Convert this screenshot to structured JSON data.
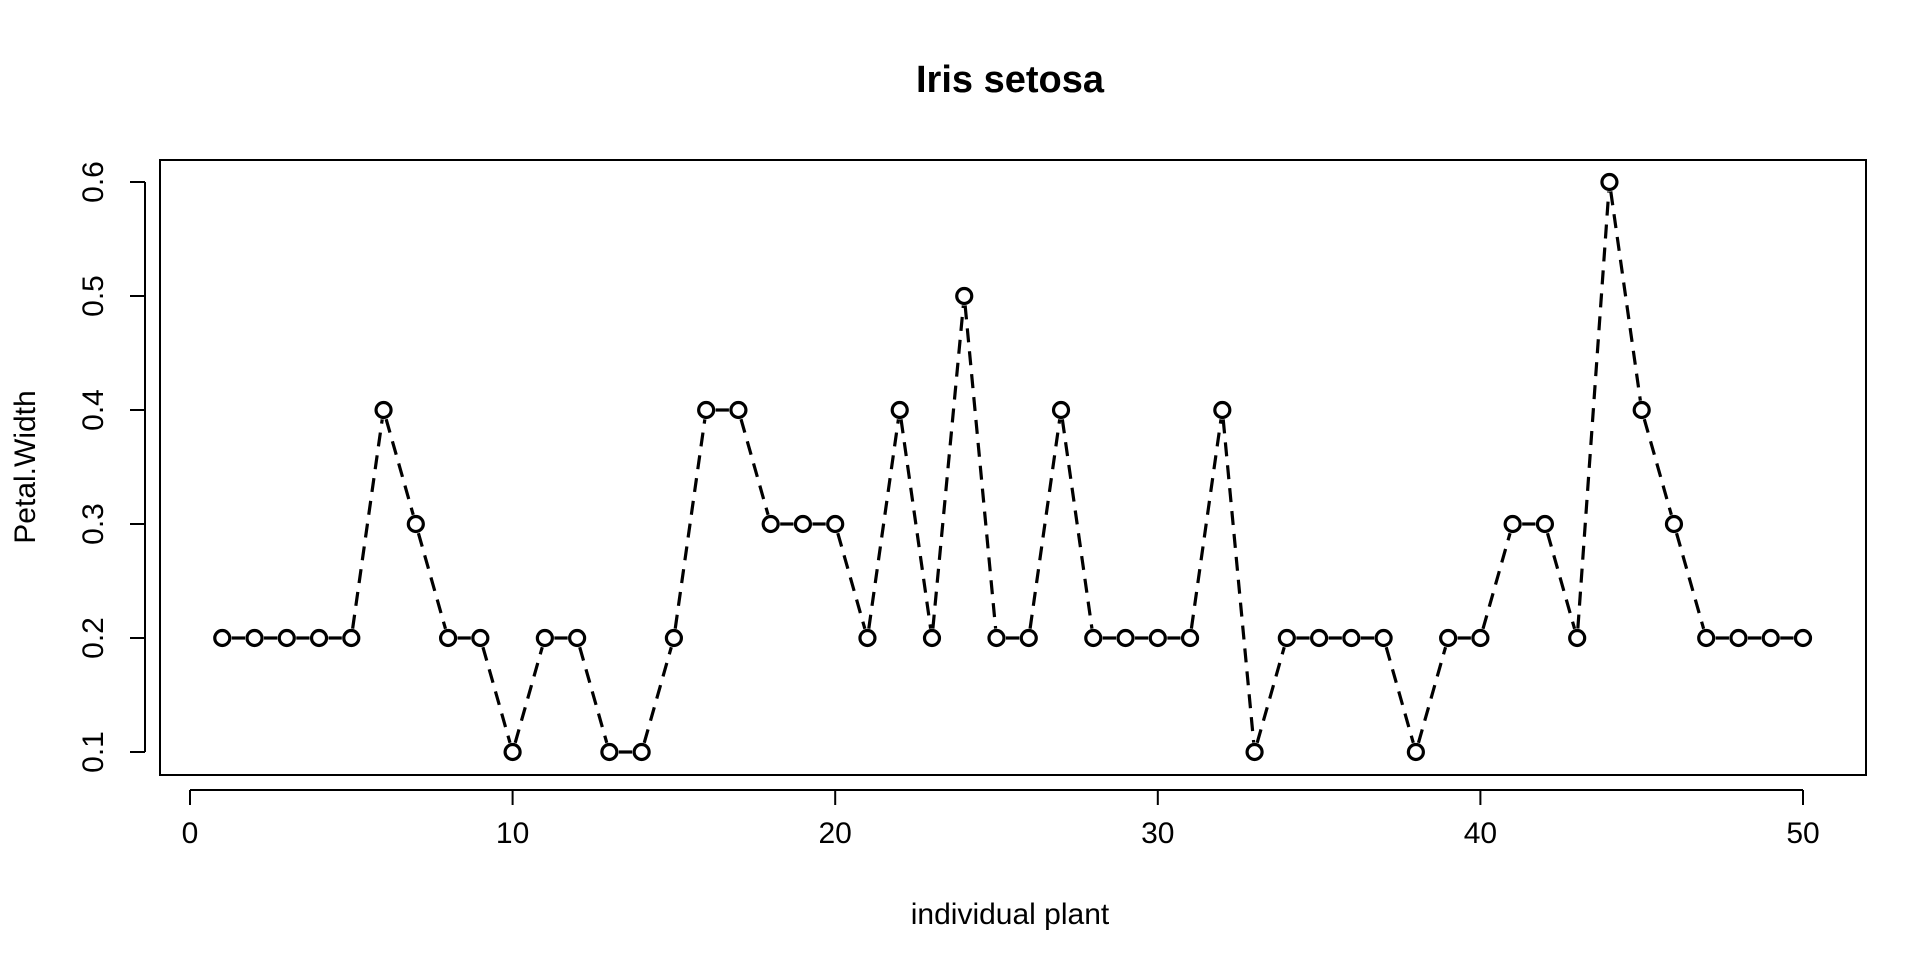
{
  "chart_data": {
    "type": "line",
    "title": "Iris setosa",
    "xlabel": "individual plant",
    "ylabel": "Petal.Width",
    "xlim": [
      0,
      52
    ],
    "ylim": [
      0.1,
      0.6
    ],
    "xticks": [
      "0",
      "10",
      "20",
      "30",
      "40",
      "50"
    ],
    "yticks": [
      "0.1",
      "0.2",
      "0.3",
      "0.4",
      "0.5",
      "0.6"
    ],
    "line_style": "dashed",
    "marker": "open-circle",
    "grid": false,
    "legend": "none",
    "x": [
      1,
      2,
      3,
      4,
      5,
      6,
      7,
      8,
      9,
      10,
      11,
      12,
      13,
      14,
      15,
      16,
      17,
      18,
      19,
      20,
      21,
      22,
      23,
      24,
      25,
      26,
      27,
      28,
      29,
      30,
      31,
      32,
      33,
      34,
      35,
      36,
      37,
      38,
      39,
      40,
      41,
      42,
      43,
      44,
      45,
      46,
      47,
      48,
      49,
      50
    ],
    "values": [
      0.2,
      0.2,
      0.2,
      0.2,
      0.2,
      0.4,
      0.3,
      0.2,
      0.2,
      0.1,
      0.2,
      0.2,
      0.1,
      0.1,
      0.2,
      0.4,
      0.4,
      0.3,
      0.3,
      0.3,
      0.2,
      0.4,
      0.2,
      0.5,
      0.2,
      0.2,
      0.4,
      0.2,
      0.2,
      0.2,
      0.2,
      0.4,
      0.1,
      0.2,
      0.2,
      0.2,
      0.2,
      0.1,
      0.2,
      0.2,
      0.3,
      0.3,
      0.2,
      0.6,
      0.4,
      0.3,
      0.2,
      0.2,
      0.2,
      0.2
    ]
  },
  "colors": {
    "ink": "#000000",
    "background": "#ffffff"
  }
}
